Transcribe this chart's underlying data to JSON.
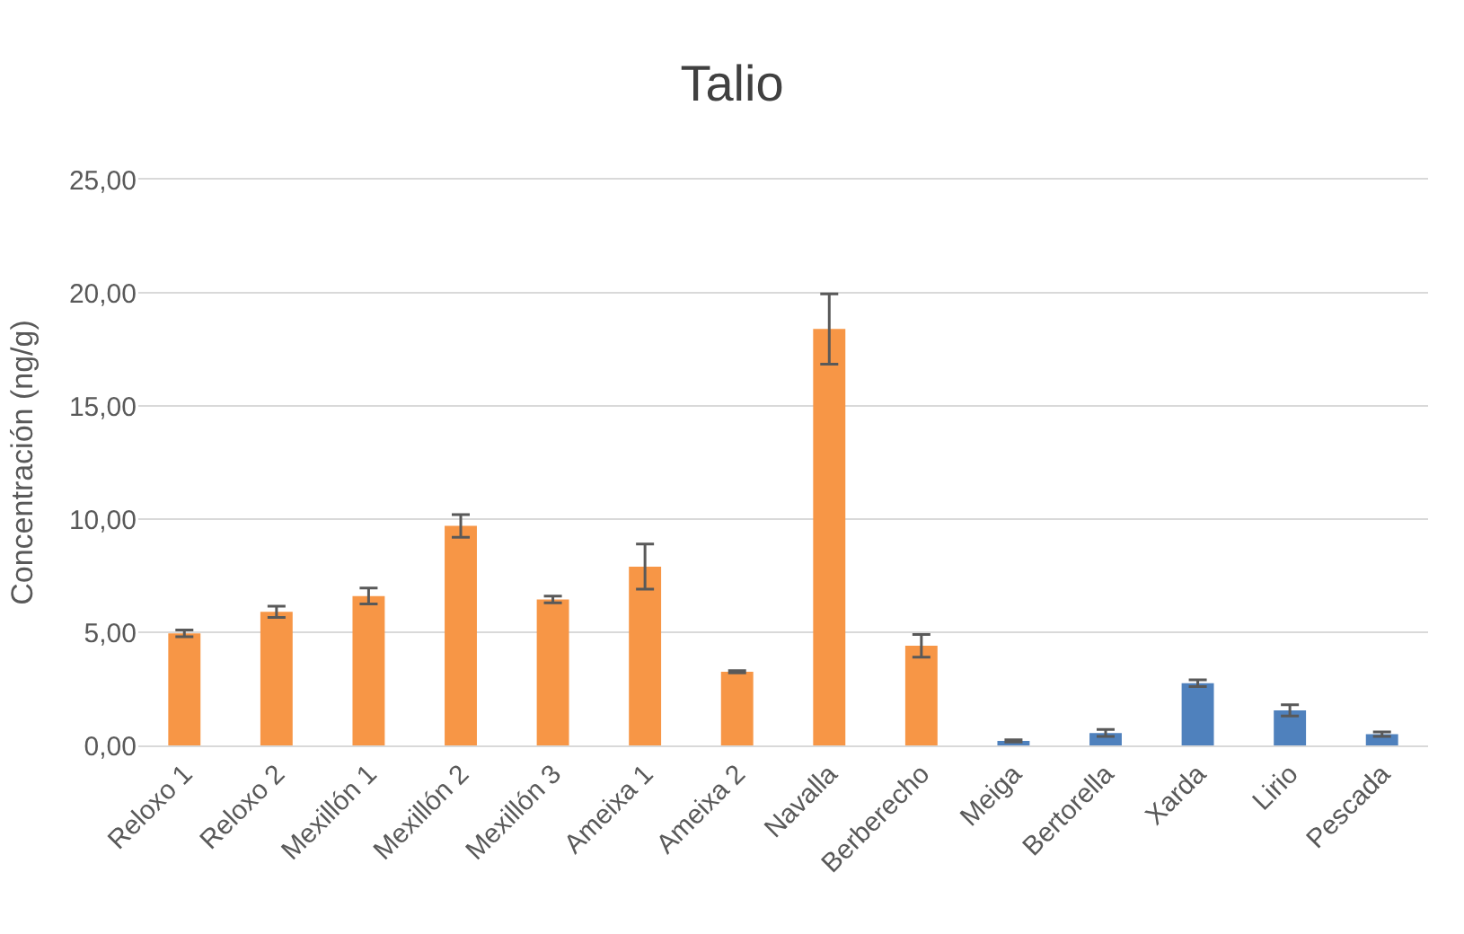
{
  "chart_data": {
    "type": "bar",
    "title": "Talio",
    "ylabel": "Concentración (ng/g)",
    "categories": [
      "Reloxo 1",
      "Reloxo 2",
      "Mexillón 1",
      "Mexillón 2",
      "Mexillón 3",
      "Ameixa 1",
      "Ameixa 2",
      "Navalla",
      "Berberecho",
      "Meiga",
      "Bertorella",
      "Xarda",
      "Lirio",
      "Pescada"
    ],
    "values": [
      4.95,
      5.9,
      6.6,
      9.7,
      6.45,
      7.9,
      3.25,
      18.4,
      4.4,
      0.2,
      0.55,
      2.75,
      1.55,
      0.5
    ],
    "errors": [
      0.15,
      0.25,
      0.35,
      0.5,
      0.15,
      1.0,
      0.05,
      1.55,
      0.5,
      0.05,
      0.15,
      0.15,
      0.25,
      0.1
    ],
    "colors": [
      "#f79646",
      "#f79646",
      "#f79646",
      "#f79646",
      "#f79646",
      "#f79646",
      "#f79646",
      "#f79646",
      "#f79646",
      "#4f81bd",
      "#4f81bd",
      "#4f81bd",
      "#4f81bd",
      "#4f81bd"
    ],
    "ylim": [
      0,
      25
    ],
    "yticks": [
      {
        "value": 0,
        "label": "0,00"
      },
      {
        "value": 5,
        "label": "5,00"
      },
      {
        "value": 10,
        "label": "10,00"
      },
      {
        "value": 15,
        "label": "15,00"
      },
      {
        "value": 20,
        "label": "20,00"
      },
      {
        "value": 25,
        "label": "25,00"
      }
    ],
    "grid": "y"
  }
}
